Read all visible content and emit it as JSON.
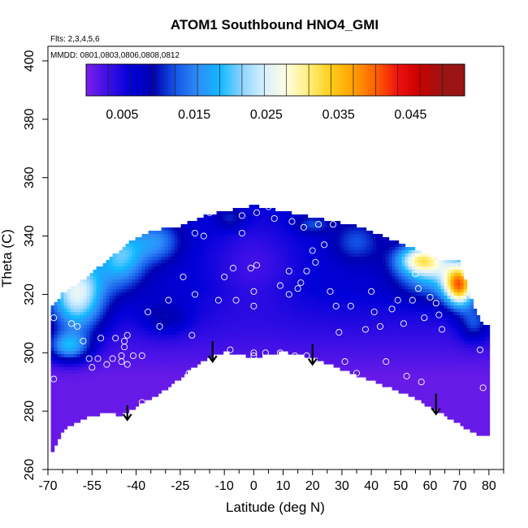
{
  "chart_data": {
    "type": "heatmap",
    "title": "ATOM1 Southbound HNO4_GMI",
    "subtitle_lines": [
      "Flts: 2,3,4,5,6",
      "MMDD: 0801,0803,0806,0808,0812"
    ],
    "xlabel": "Latitude (deg N)",
    "ylabel": "Theta (C)",
    "xlim": [
      -70,
      85
    ],
    "ylim": [
      260,
      405
    ],
    "x_tick_labels": [
      "-70",
      "-55",
      "-40",
      "-25",
      "-10",
      "0",
      "10",
      "20",
      "30",
      "40",
      "50",
      "60",
      "70",
      "80"
    ],
    "x_tick_values": [
      -70,
      -55,
      -40,
      -25,
      -10,
      0,
      10,
      20,
      30,
      40,
      50,
      60,
      70,
      80
    ],
    "x_minor_ticks": [
      -65,
      -60,
      -50,
      -45,
      -35,
      -30,
      -20,
      -15,
      -5,
      5,
      15,
      25,
      35,
      45,
      55,
      65,
      75,
      85
    ],
    "y_tick_labels": [
      "260",
      "280",
      "300",
      "320",
      "340",
      "360",
      "380",
      "400"
    ],
    "y_tick_values": [
      260,
      280,
      300,
      320,
      340,
      360,
      380,
      400
    ],
    "colorbar": {
      "range": [
        0.0,
        0.0525
      ],
      "tick_labels": [
        "0.005",
        "0.015",
        "0.025",
        "0.035",
        "0.045"
      ],
      "tick_values": [
        0.005,
        0.015,
        0.025,
        0.035,
        0.045
      ],
      "colors": [
        "#7a1fe8",
        "#3b0fe6",
        "#0000d8",
        "#0000b0",
        "#1455e6",
        "#2f8cf7",
        "#10b8ff",
        "#8fd4ff",
        "#d8f0ff",
        "#fffde0",
        "#ffef7a",
        "#ffcc1a",
        "#ff9f00",
        "#ff6000",
        "#f01010",
        "#c80000",
        "#9a1414"
      ]
    },
    "data_extent": {
      "latitudes": [
        -68,
        -65,
        -60,
        -55,
        -50,
        -45,
        -40,
        -35,
        -30,
        -25,
        -20,
        -15,
        -10,
        -5,
        0,
        5,
        10,
        15,
        20,
        25,
        30,
        35,
        40,
        45,
        50,
        55,
        60,
        65,
        70,
        75,
        78
      ],
      "theta_bottom": [
        267,
        274,
        277,
        279,
        280,
        279,
        282,
        285,
        288,
        292,
        296,
        299,
        301,
        300,
        299,
        300,
        301,
        300,
        299,
        297,
        295,
        293,
        291,
        289,
        287,
        285,
        282,
        279,
        276,
        273,
        272
      ],
      "theta_top": [
        316,
        320,
        323,
        327,
        331,
        335,
        339,
        341,
        342,
        343,
        345,
        347,
        348,
        349,
        350,
        349,
        348,
        347,
        346,
        345,
        344,
        343,
        341,
        339,
        337,
        335,
        333,
        331,
        331,
        315,
        309
      ]
    },
    "arrows": [
      {
        "lat": -43,
        "theta_top": 282,
        "theta_tip": 277
      },
      {
        "lat": -14,
        "theta_top": 304,
        "theta_tip": 297
      },
      {
        "lat": 20,
        "theta_top": 303,
        "theta_tip": 296
      },
      {
        "lat": 62,
        "theta_top": 286,
        "theta_tip": 279
      }
    ],
    "sample_points": [
      [
        -68,
        312
      ],
      [
        -68,
        291
      ],
      [
        -62,
        310
      ],
      [
        -60,
        309
      ],
      [
        -58,
        304
      ],
      [
        -56,
        298
      ],
      [
        -55,
        295
      ],
      [
        -53,
        298
      ],
      [
        -52,
        305
      ],
      [
        -50,
        296
      ],
      [
        -48,
        298
      ],
      [
        -47,
        305
      ],
      [
        -45,
        297
      ],
      [
        -45,
        299
      ],
      [
        -44,
        302
      ],
      [
        -44,
        304
      ],
      [
        -43,
        306
      ],
      [
        -43,
        296
      ],
      [
        -41,
        299
      ],
      [
        -38,
        299
      ],
      [
        -38,
        283
      ],
      [
        -36,
        314
      ],
      [
        -32,
        309
      ],
      [
        -30,
        286
      ],
      [
        -29,
        318
      ],
      [
        -24,
        326
      ],
      [
        -22,
        293
      ],
      [
        -21,
        306
      ],
      [
        -20,
        320
      ],
      [
        -20,
        341
      ],
      [
        -17,
        340
      ],
      [
        -15,
        348
      ],
      [
        -12,
        318
      ],
      [
        -10,
        326
      ],
      [
        -8,
        301
      ],
      [
        -7,
        329
      ],
      [
        -6,
        318
      ],
      [
        -4,
        341
      ],
      [
        -4,
        347
      ],
      [
        -1,
        329
      ],
      [
        0,
        321
      ],
      [
        0,
        316
      ],
      [
        0,
        300
      ],
      [
        0,
        299
      ],
      [
        1,
        330
      ],
      [
        1,
        348
      ],
      [
        4,
        300
      ],
      [
        5,
        350
      ],
      [
        7,
        346
      ],
      [
        9,
        323
      ],
      [
        9,
        300
      ],
      [
        12,
        328
      ],
      [
        12,
        320
      ],
      [
        13,
        345
      ],
      [
        14,
        299
      ],
      [
        15,
        322
      ],
      [
        16,
        324
      ],
      [
        17,
        343
      ],
      [
        18,
        328
      ],
      [
        18,
        299
      ],
      [
        20,
        335
      ],
      [
        21,
        331
      ],
      [
        22,
        344
      ],
      [
        24,
        337
      ],
      [
        26,
        321
      ],
      [
        27,
        344
      ],
      [
        28,
        316
      ],
      [
        29,
        307
      ],
      [
        31,
        297
      ],
      [
        33,
        316
      ],
      [
        35,
        293
      ],
      [
        38,
        308
      ],
      [
        40,
        321
      ],
      [
        41,
        314
      ],
      [
        43,
        309
      ],
      [
        45,
        297
      ],
      [
        47,
        315
      ],
      [
        49,
        318
      ],
      [
        51,
        310
      ],
      [
        52,
        292
      ],
      [
        54,
        318
      ],
      [
        55,
        327
      ],
      [
        56,
        322
      ],
      [
        57,
        290
      ],
      [
        58,
        312
      ],
      [
        60,
        319
      ],
      [
        62,
        317
      ],
      [
        63,
        313
      ],
      [
        64,
        308
      ],
      [
        70,
        330
      ],
      [
        72,
        327
      ],
      [
        74,
        320
      ],
      [
        77,
        301
      ],
      [
        78,
        288
      ]
    ]
  }
}
